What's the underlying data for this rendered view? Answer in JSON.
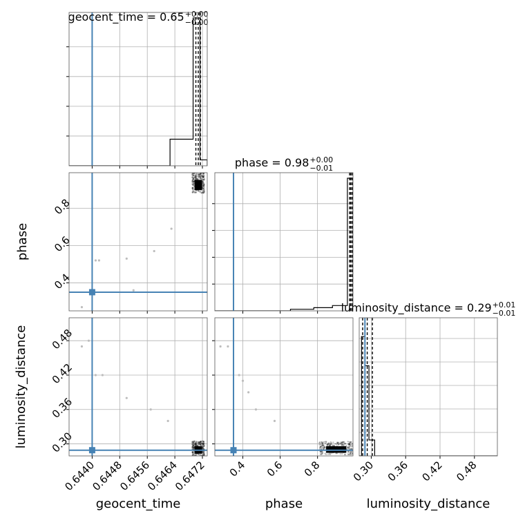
{
  "colors": {
    "truth": "#4682b4",
    "samples": "#000000",
    "grid": "#b0b0b0"
  },
  "chart_data": {
    "type": "corner",
    "parameters": [
      "geocent_time",
      "phase",
      "luminosity_distance"
    ],
    "truths": {
      "geocent_time": 0.644,
      "phase": 0.35,
      "luminosity_distance": 0.289
    },
    "ranges": {
      "geocent_time": [
        0.64333,
        0.64734
      ],
      "phase": [
        0.25,
        0.99
      ],
      "luminosity_distance": [
        0.279,
        0.52
      ]
    },
    "ticks": {
      "geocent_time": {
        "values": [
          0.644,
          0.6448,
          0.6456,
          0.6464,
          0.6472
        ],
        "labels": [
          "0.6440",
          "0.6448",
          "0.6456",
          "0.6464",
          "0.6472"
        ]
      },
      "phase": {
        "values": [
          0.4,
          0.6,
          0.8
        ],
        "labels": [
          "0.4",
          "0.6",
          "0.8"
        ]
      },
      "luminosity_distance": {
        "values": [
          0.3,
          0.36,
          0.42,
          0.48
        ],
        "labels": [
          "0.30",
          "0.36",
          "0.42",
          "0.48"
        ]
      }
    },
    "axis_labels": {
      "geocent_time": "geocent_time",
      "phase": "phase",
      "luminosity_distance": "luminosity_distance"
    },
    "titles": {
      "geocent_time": {
        "text": "geocent_time = 0.65",
        "plus": "+0.00",
        "minus": "−0.00"
      },
      "phase": {
        "text": "phase = 0.98",
        "plus": "+0.00",
        "minus": "−0.01"
      },
      "luminosity_distance": {
        "text": "luminosity_distance = 0.29",
        "plus": "+0.01",
        "minus": "−0.01"
      }
    },
    "quantiles": {
      "geocent_time": [
        0.64701,
        0.64708,
        0.64714
      ],
      "phase": [
        0.972,
        0.978,
        0.985
      ],
      "luminosity_distance": [
        0.285,
        0.293,
        0.302
      ]
    },
    "histograms": {
      "geocent_time": {
        "edges": [
          0.64333,
          0.64626,
          0.64693,
          0.64713,
          0.64734
        ],
        "counts": [
          0,
          0.18,
          1.0,
          0.04
        ]
      },
      "phase": {
        "edges": [
          0.25,
          0.655,
          0.78,
          0.88,
          0.96,
          0.99
        ],
        "counts": [
          0,
          0.012,
          0.024,
          0.04,
          1.0
        ]
      },
      "luminosity_distance": {
        "edges": [
          0.279,
          0.283,
          0.289,
          0.296,
          0.306,
          0.52
        ],
        "counts": [
          0,
          0.9,
          0.68,
          0.12,
          0
        ]
      }
    },
    "clusters": {
      "time_phase": {
        "x": [
          0.6469,
          0.64726
        ],
        "y": [
          0.88,
          0.99
        ]
      },
      "time_distance": {
        "x": [
          0.6469,
          0.64726
        ],
        "y": [
          0.279,
          0.305
        ]
      },
      "phase_distance": {
        "x": [
          0.81,
          0.99
        ],
        "y": [
          0.281,
          0.304
        ]
      }
    },
    "outliers": {
      "time_phase": [
        [
          0.6441,
          0.52
        ],
        [
          0.6442,
          0.52
        ],
        [
          0.645,
          0.53
        ],
        [
          0.6458,
          0.57
        ],
        [
          0.6463,
          0.69
        ],
        [
          0.6452,
          0.36
        ],
        [
          0.6437,
          0.27
        ]
      ],
      "time_distance": [
        [
          0.6437,
          0.47
        ],
        [
          0.6439,
          0.48
        ],
        [
          0.6441,
          0.42
        ],
        [
          0.6443,
          0.42
        ],
        [
          0.645,
          0.38
        ],
        [
          0.6457,
          0.36
        ],
        [
          0.6462,
          0.34
        ]
      ],
      "phase_distance": [
        [
          0.28,
          0.47
        ],
        [
          0.32,
          0.47
        ],
        [
          0.38,
          0.42
        ],
        [
          0.4,
          0.41
        ],
        [
          0.43,
          0.39
        ],
        [
          0.47,
          0.36
        ],
        [
          0.57,
          0.34
        ]
      ]
    }
  }
}
